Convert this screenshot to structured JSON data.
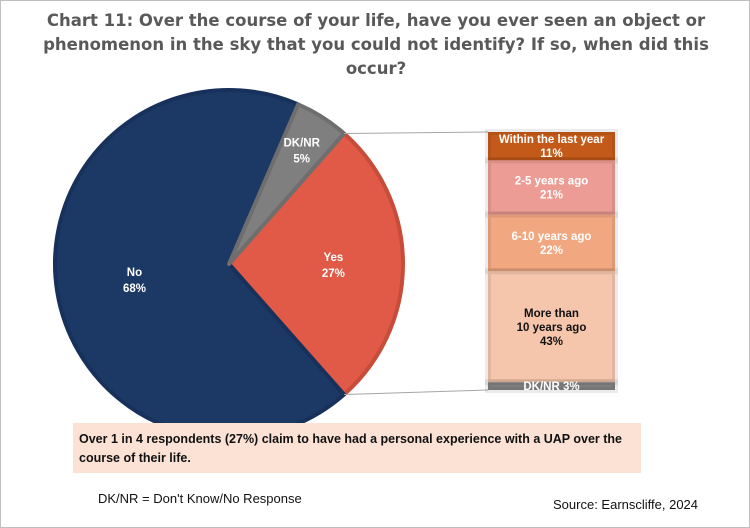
{
  "chart_data": {
    "type": "bar-of-pie",
    "title": "Chart 11: Over the course of your life, have you ever seen an object or phenomenon in the sky that you could not identify? If so, when did this occur?",
    "pie": {
      "slices": [
        {
          "label": "Yes",
          "value": 27,
          "text": "27%",
          "color": "#e05a47"
        },
        {
          "label": "No",
          "value": 68,
          "text": "68%",
          "color": "#1c3966"
        },
        {
          "label": "DK/NR",
          "value": 5,
          "text": "5%",
          "color": "#7f7f7f"
        }
      ]
    },
    "breakdown": {
      "of": "Yes",
      "segments": [
        {
          "label": "Within the last year",
          "value": 11,
          "text": "11%",
          "color": "#c45a1a",
          "text_color": "#ffffff"
        },
        {
          "label": "2-5 years ago",
          "value": 21,
          "text": "21%",
          "color": "#ec9c94",
          "text_color": "#ffffff"
        },
        {
          "label": "6-10 years ago",
          "value": 22,
          "text": "22%",
          "color": "#f1a880",
          "text_color": "#ffffff"
        },
        {
          "label": "More than 10 years ago",
          "lines": [
            "More than",
            "10 years ago"
          ],
          "value": 43,
          "text": "43%",
          "color": "#f6c6ac",
          "text_color": "#111111"
        },
        {
          "label": "DK/NR",
          "value": 3,
          "text": "DK/NR 3%",
          "color": "#7f7f7f",
          "text_color": "#ffffff"
        }
      ]
    }
  },
  "annotation": "Over 1 in 4 respondents (27%) claim to have had a personal experience with a UAP over the course of their life.",
  "footnote": "DK/NR = Don't Know/No Response",
  "source": "Source: Earnscliffe, 2024"
}
